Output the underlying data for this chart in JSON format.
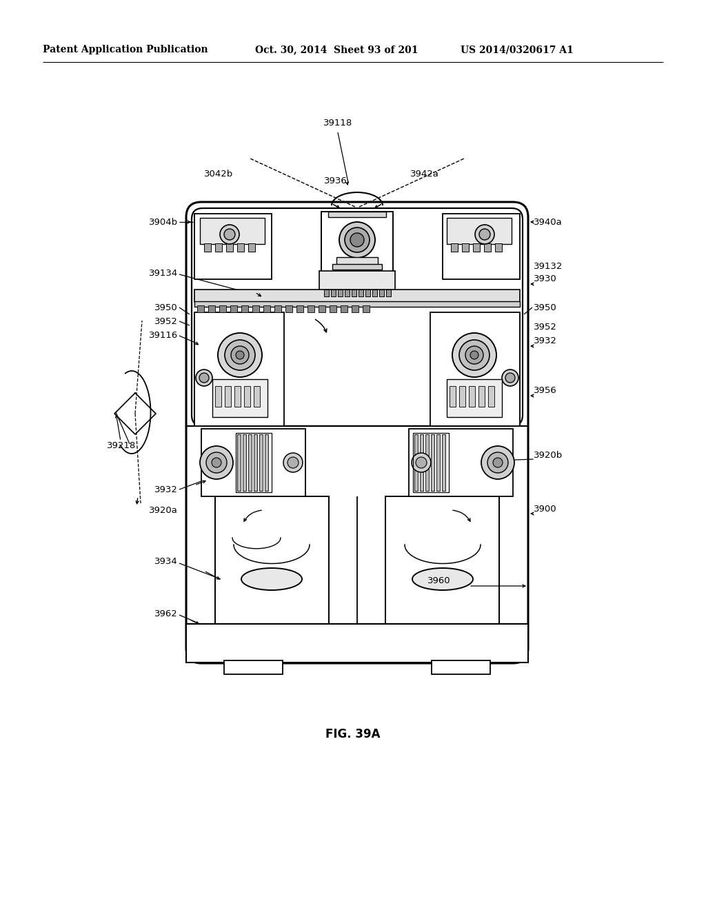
{
  "header_left": "Patent Application Publication",
  "header_mid": "Oct. 30, 2014  Sheet 93 of 201",
  "header_right": "US 2014/0320617 A1",
  "figure_label": "FIG. 39A",
  "bg_color": "#ffffff",
  "lc": "#000000",
  "fig_w": 10.24,
  "fig_h": 13.2,
  "dpi": 100
}
